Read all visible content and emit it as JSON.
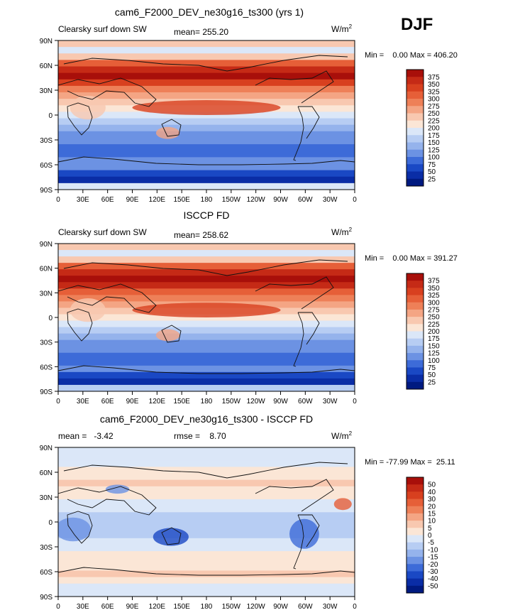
{
  "season": "DJF",
  "chart_data": [
    {
      "type": "heatmap",
      "title": "cam6_F2000_DEV_ne30g16_ts300 (yrs 1)",
      "left_label": "Clearsky surf down SW",
      "stat_text": "mean= 255.20",
      "units": "W/m",
      "units_sup": "2",
      "minmax_text": "Min =    0.00 Max = 406.20",
      "levels": [
        "375",
        "350",
        "325",
        "300",
        "275",
        "250",
        "225",
        "200",
        "175",
        "150",
        "125",
        "100",
        "75",
        "50",
        "25"
      ],
      "colors": [
        "#a80f0a",
        "#c52a16",
        "#d8401f",
        "#e65f38",
        "#ee8058",
        "#f4a584",
        "#f8c8b0",
        "#fbe6d6",
        "#dbe7f8",
        "#b7cdf3",
        "#95b3ec",
        "#6c92e3",
        "#3d6bd8",
        "#1a48c4",
        "#0a2da6",
        "#001a80"
      ],
      "bands": [
        6,
        8,
        6,
        3,
        1,
        0,
        2,
        4,
        5,
        6,
        7,
        8,
        9,
        10,
        11,
        11,
        12,
        12,
        11,
        11,
        13,
        14,
        8
      ],
      "bands_pattern": "sw",
      "lat_ticks": [
        "90N",
        "60N",
        "30N",
        "0",
        "30S",
        "60S",
        "90S"
      ],
      "lon_ticks": [
        "0",
        "30E",
        "60E",
        "90E",
        "120E",
        "150E",
        "180",
        "150W",
        "120W",
        "90W",
        "60W",
        "30W",
        "0"
      ]
    },
    {
      "type": "heatmap",
      "title": "ISCCP FD",
      "left_label": "Clearsky surf down SW",
      "stat_text": "mean= 258.62",
      "units": "W/m",
      "units_sup": "2",
      "minmax_text": "Min =    0.00 Max = 391.27",
      "levels": [
        "375",
        "350",
        "325",
        "300",
        "275",
        "250",
        "225",
        "200",
        "175",
        "150",
        "125",
        "100",
        "75",
        "50",
        "25"
      ],
      "colors": [
        "#a80f0a",
        "#c52a16",
        "#d8401f",
        "#e65f38",
        "#ee8058",
        "#f4a584",
        "#f8c8b0",
        "#fbe6d6",
        "#dbe7f8",
        "#b7cdf3",
        "#95b3ec",
        "#6c92e3",
        "#3d6bd8",
        "#1a48c4",
        "#0a2da6",
        "#001a80"
      ],
      "bands": [
        6,
        8,
        6,
        3,
        1,
        0,
        1,
        3,
        4,
        5,
        6,
        7,
        8,
        9,
        10,
        11,
        11,
        12,
        12,
        11,
        13,
        14,
        9
      ],
      "bands_pattern": "sw",
      "lat_ticks": [
        "90N",
        "60N",
        "30N",
        "0",
        "30S",
        "60S",
        "90S"
      ],
      "lon_ticks": [
        "0",
        "30E",
        "60E",
        "90E",
        "120E",
        "150E",
        "180",
        "150W",
        "120W",
        "90W",
        "60W",
        "30W",
        "0"
      ]
    },
    {
      "type": "heatmap",
      "title": "cam6_F2000_DEV_ne30g16_ts300 - ISCCP FD",
      "left_label": "mean =   -3.42",
      "stat_text": "rmse =    8.70",
      "units": "W/m",
      "units_sup": "2",
      "minmax_text": "Min = -77.99 Max =  25.11",
      "levels": [
        "50",
        "40",
        "30",
        "20",
        "15",
        "10",
        "5",
        "0",
        "-5",
        "-10",
        "-15",
        "-20",
        "-30",
        "-40",
        "-50"
      ],
      "colors": [
        "#a80f0a",
        "#c52a16",
        "#d8401f",
        "#e65f38",
        "#ee8058",
        "#f4a584",
        "#f8c8b0",
        "#fbe6d6",
        "#dbe7f8",
        "#b7cdf3",
        "#95b3ec",
        "#6c92e3",
        "#3d6bd8",
        "#1a48c4",
        "#0a2da6",
        "#001a80"
      ],
      "bands": [
        8,
        8,
        8,
        7,
        7,
        6,
        7,
        7,
        8,
        8,
        9,
        9,
        9,
        9,
        8,
        8,
        7,
        7,
        7,
        6,
        7,
        8,
        8
      ],
      "bands_pattern": "diff",
      "lat_ticks": [
        "90N",
        "60N",
        "30N",
        "0",
        "30S",
        "60S",
        "90S"
      ],
      "lon_ticks": [
        "0",
        "30E",
        "60E",
        "90E",
        "120E",
        "150E",
        "180",
        "150W",
        "120W",
        "90W",
        "60W",
        "30W",
        "0"
      ]
    }
  ]
}
